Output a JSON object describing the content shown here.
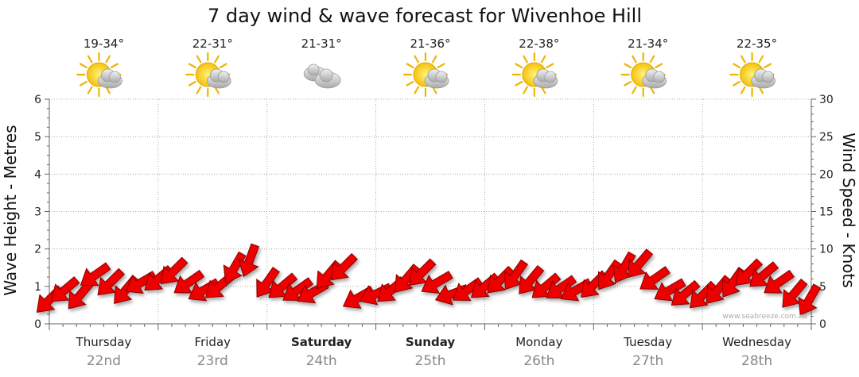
{
  "chart_data": {
    "type": "line",
    "title": "7 day wind & wave forecast for Wivenhoe Hill",
    "ylabel_left": "Wave Height - Metres",
    "ylabel_right": "Wind Speed - Knots",
    "ylim_left": [
      0,
      6
    ],
    "ylim_right": [
      0,
      30
    ],
    "yticks_left": [
      "0",
      "1",
      "2",
      "3",
      "4",
      "5",
      "6"
    ],
    "yticks_right": [
      "0",
      "5",
      "10",
      "15",
      "20",
      "25",
      "30"
    ],
    "grid": true,
    "credit": "www.seabreeze.com.au",
    "days": [
      {
        "day": "Thursday",
        "date": "22nd",
        "temp": "19-34°",
        "icon": "sun-cloud-icon",
        "bold": false
      },
      {
        "day": "Friday",
        "date": "23rd",
        "temp": "22-31°",
        "icon": "sun-cloud-icon",
        "bold": false
      },
      {
        "day": "Saturday",
        "date": "24th",
        "temp": "21-31°",
        "icon": "cloud-icon",
        "bold": true
      },
      {
        "day": "Sunday",
        "date": "25th",
        "temp": "21-36°",
        "icon": "sun-cloud-icon",
        "bold": true
      },
      {
        "day": "Monday",
        "date": "26th",
        "temp": "22-38°",
        "icon": "sun-cloud-icon",
        "bold": false
      },
      {
        "day": "Tuesday",
        "date": "27th",
        "temp": "21-34°",
        "icon": "sun-cloud-icon",
        "bold": false
      },
      {
        "day": "Wednesday",
        "date": "28th",
        "temp": "22-35°",
        "icon": "sun-cloud-icon",
        "bold": false
      }
    ],
    "series": [
      {
        "name": "Wind Speed - Knots",
        "x_days": [
          0.0,
          0.14,
          0.28,
          0.42,
          0.56,
          0.7,
          0.84,
          1.0,
          1.14,
          1.28,
          1.42,
          1.56,
          1.7,
          1.84,
          2.0,
          2.14,
          2.28,
          2.42,
          2.56,
          2.7,
          2.84,
          3.0,
          3.14,
          3.28,
          3.42,
          3.56,
          3.7,
          3.84,
          4.0,
          4.14,
          4.28,
          4.42,
          4.56,
          4.7,
          4.84,
          5.0,
          5.14,
          5.28,
          5.42,
          5.56,
          5.7,
          5.84,
          6.0,
          6.14,
          6.28,
          6.42,
          6.56,
          6.7,
          6.84,
          6.98
        ],
        "values": [
          3.2,
          4.5,
          3.8,
          6.5,
          5.5,
          4.5,
          5.5,
          6.0,
          7.0,
          5.5,
          4.5,
          5.0,
          7.5,
          8.5,
          5.5,
          5.0,
          4.5,
          4.2,
          6.5,
          7.5,
          3.5,
          4.0,
          4.5,
          6.0,
          6.8,
          5.5,
          4.0,
          4.5,
          5.0,
          5.8,
          6.5,
          5.8,
          5.0,
          4.8,
          4.5,
          5.2,
          6.5,
          7.5,
          8.0,
          6.0,
          4.5,
          4.0,
          3.8,
          4.5,
          5.5,
          6.8,
          6.5,
          5.5,
          4.0,
          3.2
        ],
        "direction_deg": [
          135,
          140,
          130,
          145,
          135,
          130,
          150,
          140,
          135,
          145,
          150,
          140,
          120,
          110,
          125,
          140,
          145,
          150,
          130,
          135,
          150,
          155,
          140,
          130,
          135,
          150,
          160,
          145,
          140,
          135,
          125,
          130,
          140,
          145,
          150,
          135,
          125,
          120,
          130,
          145,
          150,
          140,
          135,
          130,
          125,
          135,
          140,
          145,
          130,
          120
        ]
      }
    ]
  }
}
